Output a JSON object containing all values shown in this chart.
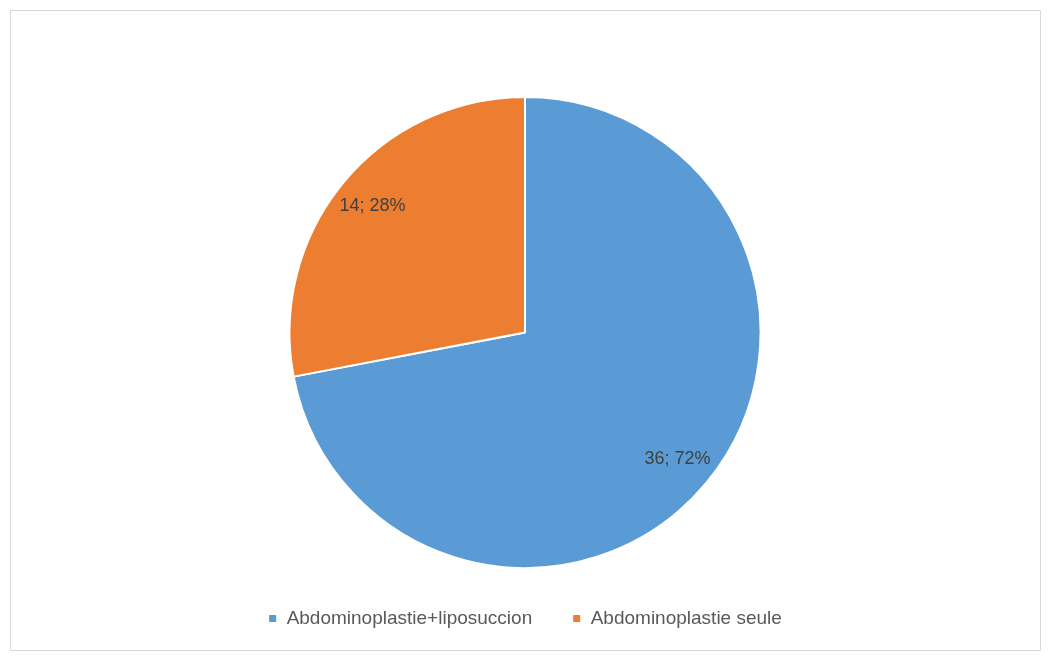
{
  "chart_data": {
    "type": "pie",
    "categories": [
      "Abdominoplastie+liposuccion",
      "Abdominoplastie seule"
    ],
    "values": [
      36,
      14
    ],
    "colors": [
      "#5b9bd5",
      "#ed7d31"
    ],
    "value_labels": [
      "36; 72%",
      "14; 28%"
    ],
    "legend": "bottom"
  }
}
